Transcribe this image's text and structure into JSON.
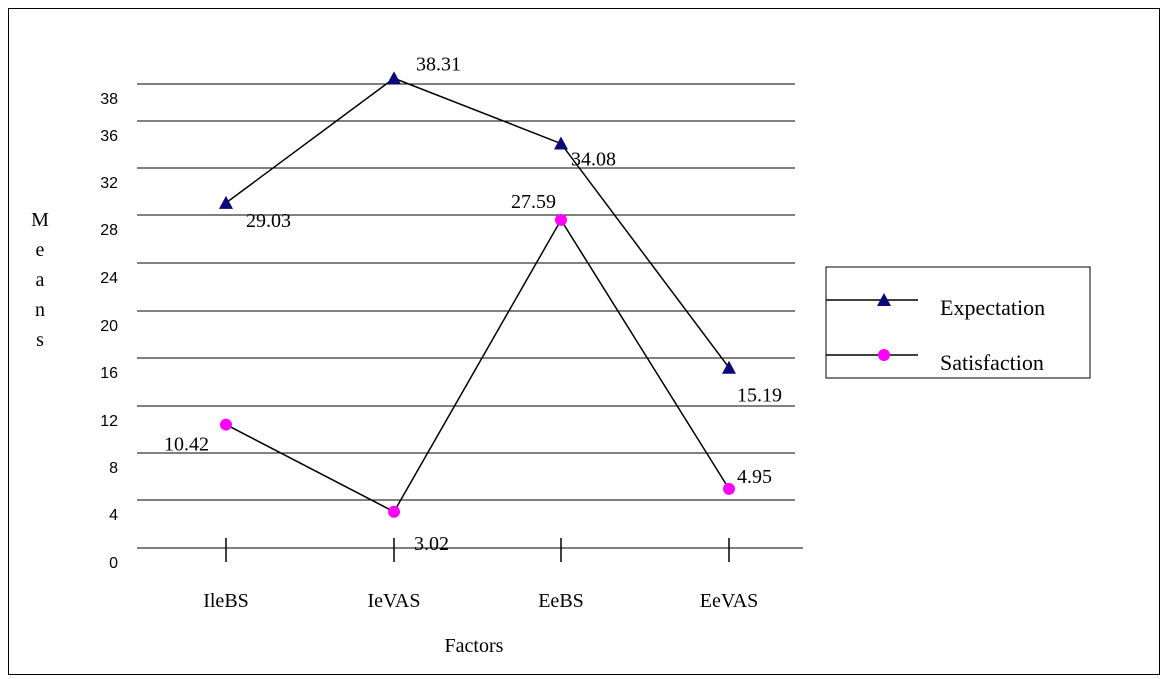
{
  "chart_data": {
    "type": "line",
    "categories": [
      "IleBS",
      "IeVAS",
      "EeBS",
      "EeVAS"
    ],
    "series": [
      {
        "name": "Expectation",
        "values": [
          29.03,
          38.31,
          34.08,
          15.19
        ],
        "labels": [
          "29.03",
          "38.31",
          "34.08",
          "15.19"
        ],
        "marker": "triangle",
        "color": "#0a0a78"
      },
      {
        "name": "Satisfaction",
        "values": [
          10.42,
          3.02,
          27.59,
          4.95
        ],
        "labels": [
          "10.42",
          "3.02",
          "27.59",
          "4.95"
        ],
        "marker": "circle",
        "color": "#ff00ff"
      }
    ],
    "yticks": [
      "0",
      "4",
      "8",
      "12",
      "16",
      "20",
      "24",
      "28",
      "32",
      "36",
      "38"
    ],
    "xlabel": "Factors",
    "ylabel": "Means",
    "legend_position": "right",
    "grid": true
  }
}
